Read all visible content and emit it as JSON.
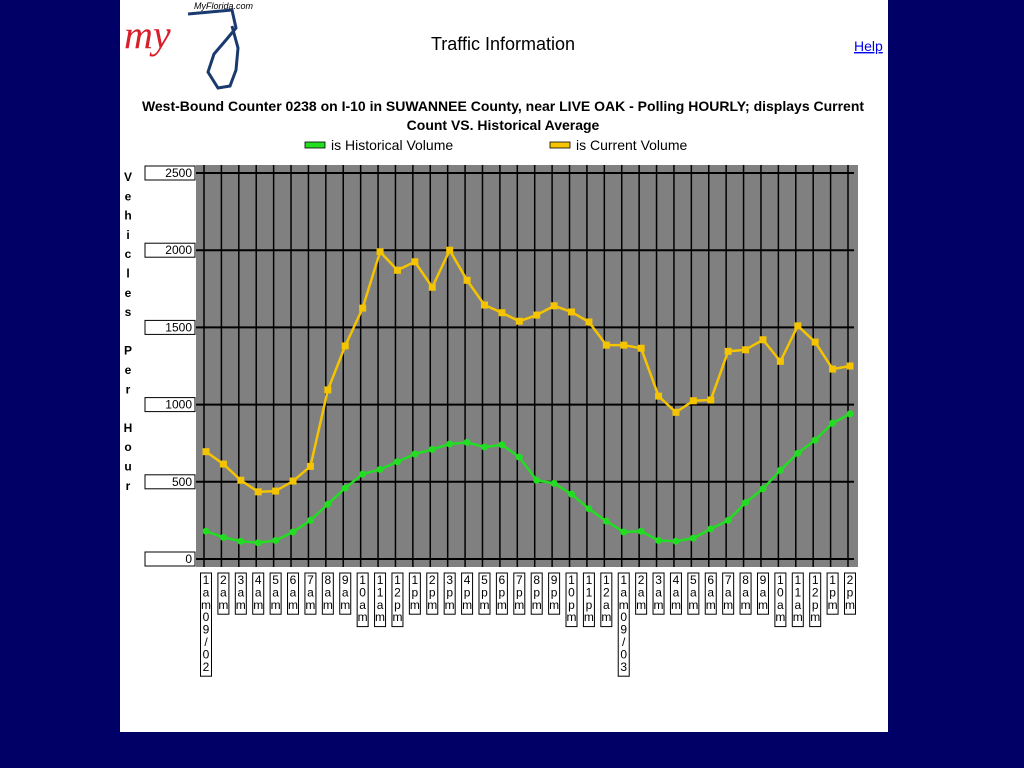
{
  "page": {
    "site": "MyFlorida.com",
    "logo": "my",
    "heading": "Traffic Information",
    "help": "Help"
  },
  "chart_data": {
    "type": "line",
    "title": [
      "West-Bound Counter 0238 on I-10 in SUWANNEE County, near LIVE OAK - Polling HOURLY; displays Current",
      "Count VS. Historical Average"
    ],
    "y_label": "Vehicles Per Hour",
    "categories": [
      "1am09/02",
      "2am",
      "3am",
      "4am",
      "5am",
      "6am",
      "7am",
      "8am",
      "9am",
      "10am",
      "11am",
      "12pm",
      "1pm",
      "2pm",
      "3pm",
      "4pm",
      "5pm",
      "6pm",
      "7pm",
      "8pm",
      "9pm",
      "10pm",
      "11pm",
      "12am",
      "1am09/03",
      "2am",
      "3am",
      "4am",
      "5am",
      "6am",
      "7am",
      "8am",
      "9am",
      "10am",
      "11am",
      "12pm",
      "1pm",
      "2pm"
    ],
    "series": [
      {
        "name": "is Historical Volume",
        "color": "#22dd22",
        "marker": "circle",
        "values": [
          180,
          140,
          115,
          105,
          120,
          175,
          250,
          355,
          460,
          550,
          580,
          630,
          680,
          710,
          745,
          755,
          725,
          740,
          660,
          510,
          490,
          420,
          325,
          245,
          175,
          180,
          120,
          115,
          135,
          195,
          250,
          365,
          455,
          575,
          685,
          770,
          880,
          940
        ]
      },
      {
        "name": "is Current Volume",
        "color": "#f5c400",
        "marker": "square",
        "values": [
          695,
          615,
          510,
          435,
          440,
          505,
          600,
          1095,
          1380,
          1625,
          1990,
          1870,
          1925,
          1760,
          2000,
          1805,
          1645,
          1595,
          1540,
          1580,
          1640,
          1600,
          1535,
          1385,
          1385,
          1365,
          1055,
          950,
          1025,
          1030,
          1345,
          1355,
          1420,
          1280,
          1510,
          1405,
          1230,
          1250
        ]
      }
    ],
    "ylim": [
      0,
      2500
    ],
    "yticks": [
      0,
      500,
      1000,
      1500,
      2000,
      2500
    ],
    "grid": true
  }
}
